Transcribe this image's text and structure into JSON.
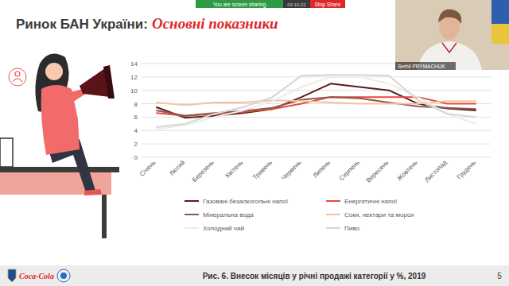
{
  "slide": {
    "title": "Ринок БАН України:",
    "title_emphasis": "Основні показники",
    "page_number": "5",
    "logo_text": "Coca-Cola"
  },
  "zoom": {
    "status": "You are screen sharing",
    "timer": "00:10:22",
    "stop": "Stop Share",
    "participant": "Serhii PRYMACHUK"
  },
  "chart_data": {
    "type": "line",
    "title": "Рис. 6. Внесок місяців у річні продажі категорії у %, 2019",
    "categories": [
      "Січень",
      "Лютий",
      "Березень",
      "Квітень",
      "Травень",
      "Червень",
      "Липень",
      "Серпень",
      "Вересень",
      "Жовтень",
      "Листопад",
      "Грудень"
    ],
    "series": [
      {
        "name": "Газовані безалкогольні напої",
        "color": "#5c1a1b",
        "values": [
          7.5,
          5.9,
          6.2,
          6.6,
          7.2,
          9.0,
          11.0,
          10.5,
          10.0,
          8.0,
          7.3,
          7.0
        ]
      },
      {
        "name": "Енергетичні напої",
        "color": "#e84a3f",
        "values": [
          6.6,
          6.2,
          6.5,
          6.8,
          7.2,
          8.0,
          9.0,
          9.0,
          9.0,
          9.0,
          8.0,
          8.0
        ]
      },
      {
        "name": "Мінеральна вода",
        "color": "#8c5a4b",
        "values": [
          7.0,
          6.2,
          6.6,
          6.9,
          7.4,
          8.6,
          9.0,
          8.8,
          8.2,
          7.6,
          7.4,
          7.2
        ]
      },
      {
        "name": "Соки, нектари та морси",
        "color": "#f6c29e",
        "values": [
          8.2,
          7.8,
          8.2,
          8.2,
          8.5,
          8.4,
          8.2,
          8.0,
          8.0,
          8.0,
          8.4,
          8.4
        ]
      },
      {
        "name": "Холодний чай",
        "color": "#ececec",
        "values": [
          4.2,
          4.8,
          6.0,
          7.0,
          8.4,
          10.5,
          12.0,
          12.0,
          11.0,
          9.0,
          6.5,
          5.0
        ]
      },
      {
        "name": "Пиво",
        "color": "#d6d6d6",
        "values": [
          4.5,
          5.0,
          6.5,
          7.5,
          9.0,
          12.2,
          12.3,
          12.3,
          12.2,
          8.5,
          6.5,
          6.0
        ]
      }
    ],
    "ylim": [
      0,
      14
    ],
    "yticks": [
      0,
      2,
      4,
      6,
      8,
      10,
      12,
      14
    ],
    "grid": true,
    "legend": "bottom"
  }
}
